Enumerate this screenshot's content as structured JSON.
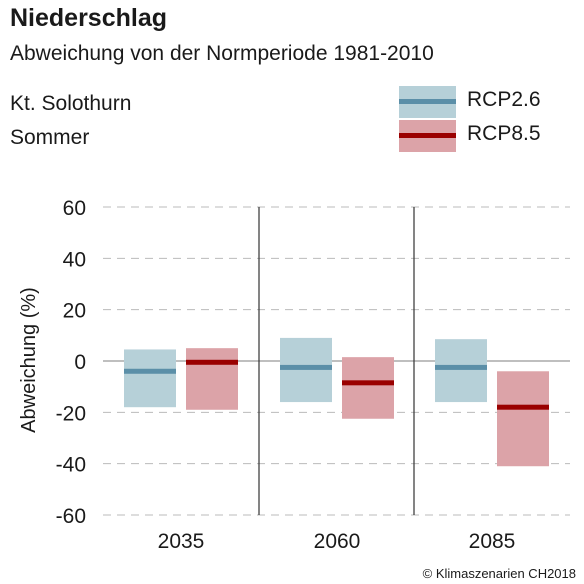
{
  "title": "Niederschlag",
  "subtitle": "Abweichung von der Normperiode 1981-2010",
  "region": "Kt. Solothurn",
  "season": "Sommer",
  "copyright": "© Klimaszenarien CH2018",
  "colors": {
    "rcp26_fill": "#b6d0d8",
    "rcp26_line": "#5b8fa8",
    "rcp85_fill": "#dca3a8",
    "rcp85_line": "#9a0000",
    "grid": "#bbbbbb",
    "axis": "#333333",
    "zero_line": "#999999"
  },
  "chart_data": {
    "type": "bar",
    "title": "Niederschlag",
    "ylabel": "Abweichung (%)",
    "xlabel": "",
    "ylim": [
      -60,
      60
    ],
    "yticks": [
      60,
      40,
      20,
      0,
      -20,
      -40,
      -60
    ],
    "ytick_labels": [
      "60",
      "40",
      "20",
      "0",
      "-20",
      "-40",
      "-60"
    ],
    "grid": true,
    "legend_position": "top-right",
    "categories": [
      "2035",
      "2060",
      "2085"
    ],
    "series": [
      {
        "name": "RCP2.6",
        "low": [
          -18,
          -16,
          -16
        ],
        "median": [
          -4,
          -2.5,
          -2.5
        ],
        "high": [
          4.5,
          9,
          8.5
        ]
      },
      {
        "name": "RCP8.5",
        "low": [
          -19,
          -22.5,
          -41
        ],
        "median": [
          -0.5,
          -8.5,
          -18
        ],
        "high": [
          5,
          1.5,
          -4
        ]
      }
    ]
  }
}
